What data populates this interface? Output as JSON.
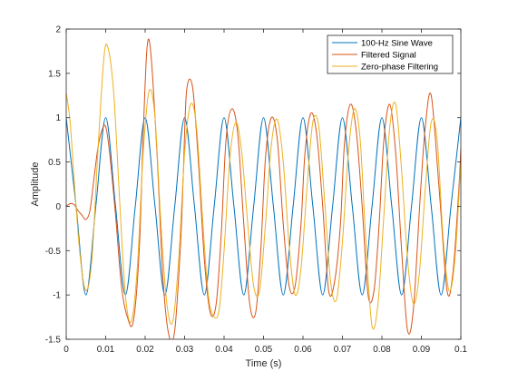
{
  "chart_data": {
    "type": "line",
    "title": "",
    "xlabel": "Time (s)",
    "ylabel": "Amplitude",
    "xlim": [
      0,
      0.1
    ],
    "ylim": [
      -1.5,
      2
    ],
    "x_ticks": [
      "0",
      "0.01",
      "0.02",
      "0.03",
      "0.04",
      "0.05",
      "0.06",
      "0.07",
      "0.08",
      "0.09",
      "0.1"
    ],
    "y_ticks": [
      "-1.5",
      "-1",
      "-0.5",
      "0",
      "0.5",
      "1",
      "1.5",
      "2"
    ],
    "grid": false,
    "legend_position": "top-right",
    "colors": {
      "axes": "#262626",
      "background": "#ffffff"
    },
    "series": [
      {
        "name": "100-Hz Sine Wave",
        "color": "#0072BD",
        "x": [
          0.0,
          0.0025,
          0.005,
          0.0075,
          0.01,
          0.0125,
          0.015,
          0.0175,
          0.02,
          0.0225,
          0.025,
          0.0275,
          0.03,
          0.0325,
          0.035,
          0.0375,
          0.04,
          0.0425,
          0.045,
          0.0475,
          0.05,
          0.0525,
          0.055,
          0.0575,
          0.06,
          0.0625,
          0.065,
          0.0675,
          0.07,
          0.0725,
          0.075,
          0.0775,
          0.08,
          0.0825,
          0.085,
          0.0875,
          0.09,
          0.0925,
          0.095,
          0.0975,
          0.1
        ],
        "y": [
          1.0,
          0.0,
          -1.0,
          0.0,
          1.0,
          0.0,
          -1.0,
          0.0,
          1.0,
          0.0,
          -1.0,
          0.0,
          1.0,
          0.0,
          -1.0,
          0.0,
          1.0,
          0.0,
          -1.0,
          0.0,
          1.0,
          0.0,
          -1.0,
          0.0,
          1.0,
          0.0,
          -1.0,
          0.0,
          1.0,
          0.0,
          -1.0,
          0.0,
          1.0,
          0.0,
          -1.0,
          0.0,
          1.0,
          0.0,
          -1.0,
          0.0,
          1.0
        ]
      },
      {
        "name": "Filtered Signal",
        "color": "#D95319",
        "x": [
          0.0,
          0.001,
          0.002,
          0.003,
          0.004,
          0.005,
          0.006,
          0.007,
          0.008,
          0.009,
          0.01,
          0.011,
          0.0125,
          0.014,
          0.0155,
          0.017,
          0.0185,
          0.0195,
          0.0205,
          0.0215,
          0.023,
          0.0245,
          0.026,
          0.0275,
          0.029,
          0.0297,
          0.0305,
          0.032,
          0.0335,
          0.035,
          0.0365,
          0.038,
          0.0393,
          0.0405,
          0.042,
          0.0435,
          0.045,
          0.0465,
          0.048,
          0.0493,
          0.0505,
          0.052,
          0.0535,
          0.055,
          0.0565,
          0.058,
          0.0595,
          0.0605,
          0.062,
          0.0635,
          0.065,
          0.0665,
          0.068,
          0.0695,
          0.0705,
          0.072,
          0.0735,
          0.075,
          0.0765,
          0.078,
          0.0793,
          0.0805,
          0.082,
          0.0835,
          0.085,
          0.0865,
          0.088,
          0.0897,
          0.091,
          0.0925,
          0.0945,
          0.0965,
          0.098,
          0.0995,
          0.1
        ],
        "y": [
          0.0,
          0.03,
          0.02,
          -0.05,
          -0.1,
          -0.15,
          -0.05,
          0.3,
          0.65,
          0.85,
          0.9,
          0.6,
          -0.1,
          -0.9,
          -1.25,
          -1.3,
          -0.5,
          0.8,
          1.8,
          1.7,
          0.6,
          -0.8,
          -1.45,
          -1.4,
          -0.4,
          0.4,
          1.3,
          1.35,
          0.5,
          -0.6,
          -1.2,
          -1.1,
          -0.3,
          0.75,
          1.1,
          0.8,
          -0.2,
          -1.1,
          -1.2,
          -0.5,
          0.55,
          1.0,
          0.75,
          -0.2,
          -0.9,
          -0.9,
          -0.2,
          0.6,
          1.05,
          0.8,
          0.0,
          -0.95,
          -0.85,
          -0.2,
          0.7,
          1.15,
          0.85,
          0.0,
          -1.0,
          -0.95,
          -0.2,
          0.75,
          1.15,
          0.6,
          -0.5,
          -1.4,
          -1.15,
          0.1,
          0.9,
          1.25,
          0.2,
          -0.95,
          -0.75,
          0.2,
          0.65
        ]
      },
      {
        "name": "Zero-phase Filtering",
        "color": "#EDB120",
        "x": [
          0.0,
          0.001,
          0.002,
          0.0035,
          0.005,
          0.0065,
          0.008,
          0.0095,
          0.0105,
          0.012,
          0.0135,
          0.015,
          0.0165,
          0.018,
          0.0195,
          0.021,
          0.0225,
          0.024,
          0.0255,
          0.027,
          0.0285,
          0.03,
          0.0315,
          0.033,
          0.0345,
          0.036,
          0.0375,
          0.0388,
          0.04,
          0.0415,
          0.043,
          0.0445,
          0.046,
          0.0475,
          0.049,
          0.0505,
          0.052,
          0.0535,
          0.055,
          0.0565,
          0.058,
          0.0595,
          0.061,
          0.0625,
          0.064,
          0.0655,
          0.067,
          0.0685,
          0.07,
          0.0715,
          0.073,
          0.0745,
          0.076,
          0.0775,
          0.079,
          0.0805,
          0.082,
          0.0835,
          0.085,
          0.0865,
          0.088,
          0.0895,
          0.091,
          0.0925,
          0.094,
          0.0955,
          0.097,
          0.0985,
          0.1
        ],
        "y": [
          1.28,
          0.95,
          0.3,
          -0.55,
          -0.95,
          -0.6,
          0.6,
          1.65,
          1.8,
          1.3,
          0.1,
          -1.0,
          -1.3,
          -0.7,
          0.6,
          1.3,
          1.0,
          -0.2,
          -1.1,
          -1.3,
          -0.6,
          0.6,
          1.15,
          0.9,
          -0.1,
          -1.0,
          -1.25,
          -1.15,
          -0.5,
          0.55,
          0.95,
          0.6,
          -0.2,
          -0.9,
          -0.95,
          -0.2,
          0.7,
          0.98,
          0.5,
          -0.45,
          -1.0,
          -0.7,
          0.2,
          0.95,
          0.9,
          0.05,
          -0.85,
          -1.05,
          -0.4,
          0.6,
          1.1,
          0.75,
          -0.45,
          -1.35,
          -1.1,
          -0.1,
          0.9,
          1.15,
          0.4,
          -0.6,
          -1.1,
          -0.75,
          0.2,
          0.95,
          0.75,
          -0.35,
          -0.95,
          -0.6,
          0.5
        ]
      }
    ]
  }
}
